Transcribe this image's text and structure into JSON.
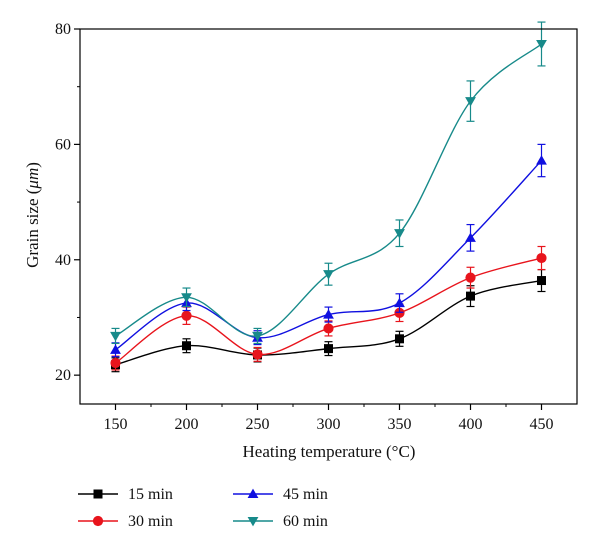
{
  "chart_data": {
    "type": "line",
    "title": "",
    "xlabel": "Heating temperature (°C)",
    "ylabel": "Grain size (μm)",
    "ylabel_parts": {
      "before": "Grain size (",
      "unit": "μm",
      "after": ")"
    },
    "x": [
      150,
      200,
      250,
      300,
      350,
      400,
      450
    ],
    "xlim": [
      125,
      475
    ],
    "ylim": [
      15,
      80
    ],
    "xticks": [
      150,
      200,
      250,
      300,
      350,
      400,
      450
    ],
    "yticks": [
      20,
      40,
      60,
      80
    ],
    "grid": false,
    "legend_position": "bottom",
    "series": [
      {
        "name": "15 min",
        "color": "#000000",
        "marker": "square",
        "values": [
          21.8,
          25.1,
          23.5,
          24.6,
          26.3,
          33.7,
          36.4
        ],
        "errors": [
          1.2,
          1.2,
          1.2,
          1.2,
          1.3,
          1.8,
          1.9
        ]
      },
      {
        "name": "30 min",
        "color": "#e8141c",
        "marker": "circle",
        "values": [
          22.1,
          30.3,
          23.6,
          28.1,
          30.8,
          36.9,
          40.3
        ],
        "errors": [
          1.2,
          1.5,
          1.2,
          1.3,
          1.5,
          1.8,
          2.0
        ]
      },
      {
        "name": "45 min",
        "color": "#1010e0",
        "marker": "triangle-up",
        "values": [
          24.4,
          32.5,
          26.5,
          30.5,
          32.5,
          43.8,
          57.2
        ],
        "errors": [
          1.2,
          1.3,
          1.2,
          1.3,
          1.6,
          2.3,
          2.8
        ]
      },
      {
        "name": "60 min",
        "color": "#178a8a",
        "marker": "triangle-down",
        "values": [
          26.8,
          33.5,
          26.8,
          37.5,
          44.6,
          67.5,
          77.4
        ],
        "errors": [
          1.3,
          1.6,
          1.3,
          1.9,
          2.3,
          3.5,
          3.8
        ]
      }
    ]
  }
}
